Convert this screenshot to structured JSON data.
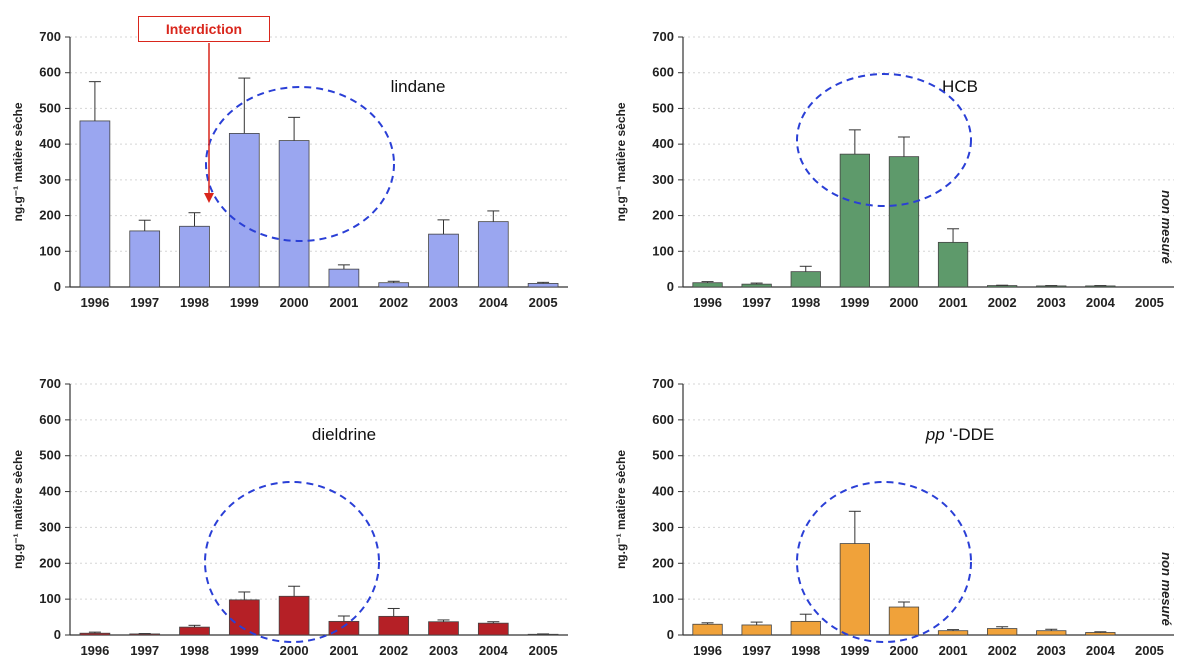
{
  "annotation": {
    "label": "Interdiction",
    "color": "#d9261c",
    "target_year": "1998"
  },
  "side_note": "non mesuré",
  "chart_data": [
    {
      "type": "bar",
      "title": "lindane",
      "title_italic_prefix": "",
      "ylabel": "ng.g⁻¹ matière sèche",
      "ylim": [
        0,
        700
      ],
      "yticks": [
        0,
        100,
        200,
        300,
        400,
        500,
        600,
        700
      ],
      "categories": [
        "1996",
        "1997",
        "1998",
        "1999",
        "2000",
        "2001",
        "2002",
        "2003",
        "2004",
        "2005"
      ],
      "values": [
        465,
        157,
        170,
        430,
        410,
        50,
        12,
        148,
        183,
        10
      ],
      "errors": [
        110,
        30,
        38,
        155,
        65,
        12,
        4,
        40,
        30,
        3
      ],
      "color": "#9aa6f0",
      "grid": true,
      "highlight": [
        "1999",
        "2000"
      ],
      "not_measured": false
    },
    {
      "type": "bar",
      "title": "HCB",
      "title_italic_prefix": "",
      "ylabel": "ng.g⁻¹ matière sèche",
      "ylim": [
        0,
        700
      ],
      "yticks": [
        0,
        100,
        200,
        300,
        400,
        500,
        600,
        700
      ],
      "categories": [
        "1996",
        "1997",
        "1998",
        "1999",
        "2000",
        "2001",
        "2002",
        "2003",
        "2004",
        "2005"
      ],
      "values": [
        12,
        8,
        43,
        372,
        365,
        125,
        4,
        3,
        3,
        null
      ],
      "errors": [
        3,
        3,
        15,
        68,
        55,
        38,
        1,
        1,
        1,
        null
      ],
      "color": "#5e9a6b",
      "grid": true,
      "highlight": [
        "1999",
        "2000"
      ],
      "not_measured": true
    },
    {
      "type": "bar",
      "title": "dieldrine",
      "title_italic_prefix": "",
      "ylabel": "ng.g⁻¹ matière sèche",
      "ylim": [
        0,
        700
      ],
      "yticks": [
        0,
        100,
        200,
        300,
        400,
        500,
        600,
        700
      ],
      "categories": [
        "1996",
        "1997",
        "1998",
        "1999",
        "2000",
        "2001",
        "2002",
        "2003",
        "2004",
        "2005"
      ],
      "values": [
        5,
        3,
        22,
        98,
        108,
        38,
        52,
        37,
        33,
        2
      ],
      "errors": [
        3,
        1,
        5,
        22,
        28,
        15,
        22,
        5,
        4,
        1
      ],
      "color": "#b52026",
      "grid": true,
      "highlight": [
        "1999",
        "2000"
      ],
      "not_measured": false
    },
    {
      "type": "bar",
      "title": "'-DDE",
      "title_italic_prefix": "pp",
      "ylabel": "ng.g⁻¹ matière sèche",
      "ylim": [
        0,
        700
      ],
      "yticks": [
        0,
        100,
        200,
        300,
        400,
        500,
        600,
        700
      ],
      "categories": [
        "1996",
        "1997",
        "1998",
        "1999",
        "2000",
        "2001",
        "2002",
        "2003",
        "2004",
        "2005"
      ],
      "values": [
        30,
        28,
        38,
        255,
        78,
        12,
        18,
        12,
        7,
        null
      ],
      "errors": [
        4,
        8,
        20,
        90,
        14,
        3,
        5,
        4,
        2,
        null
      ],
      "color": "#f0a23a",
      "grid": true,
      "highlight": [
        "1999"
      ],
      "not_measured": true
    }
  ]
}
